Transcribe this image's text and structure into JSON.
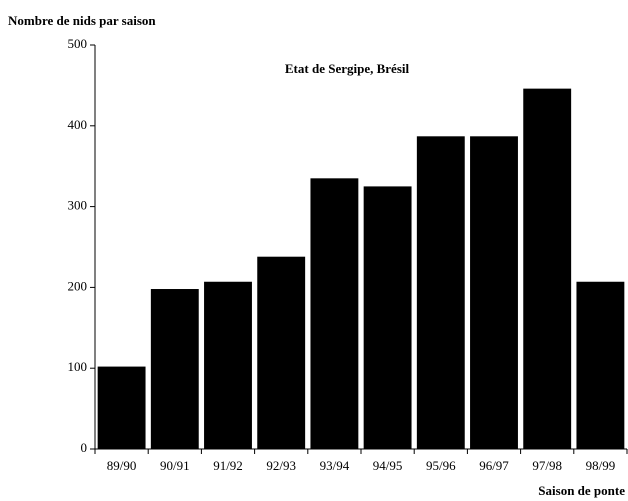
{
  "chart_data": {
    "type": "bar",
    "title": "Etat de Sergipe, Brésil",
    "y_label": "Nombre de nids par saison",
    "x_label": "Saison de ponte",
    "categories": [
      "89/90",
      "90/91",
      "91/92",
      "92/93",
      "93/94",
      "94/95",
      "95/96",
      "96/97",
      "97/98",
      "98/99"
    ],
    "values": [
      102,
      198,
      207,
      238,
      335,
      325,
      387,
      387,
      446,
      207
    ],
    "color": "#000000",
    "ylim": [
      0,
      500
    ],
    "yticks": [
      0,
      100,
      200,
      300,
      400,
      500
    ]
  }
}
